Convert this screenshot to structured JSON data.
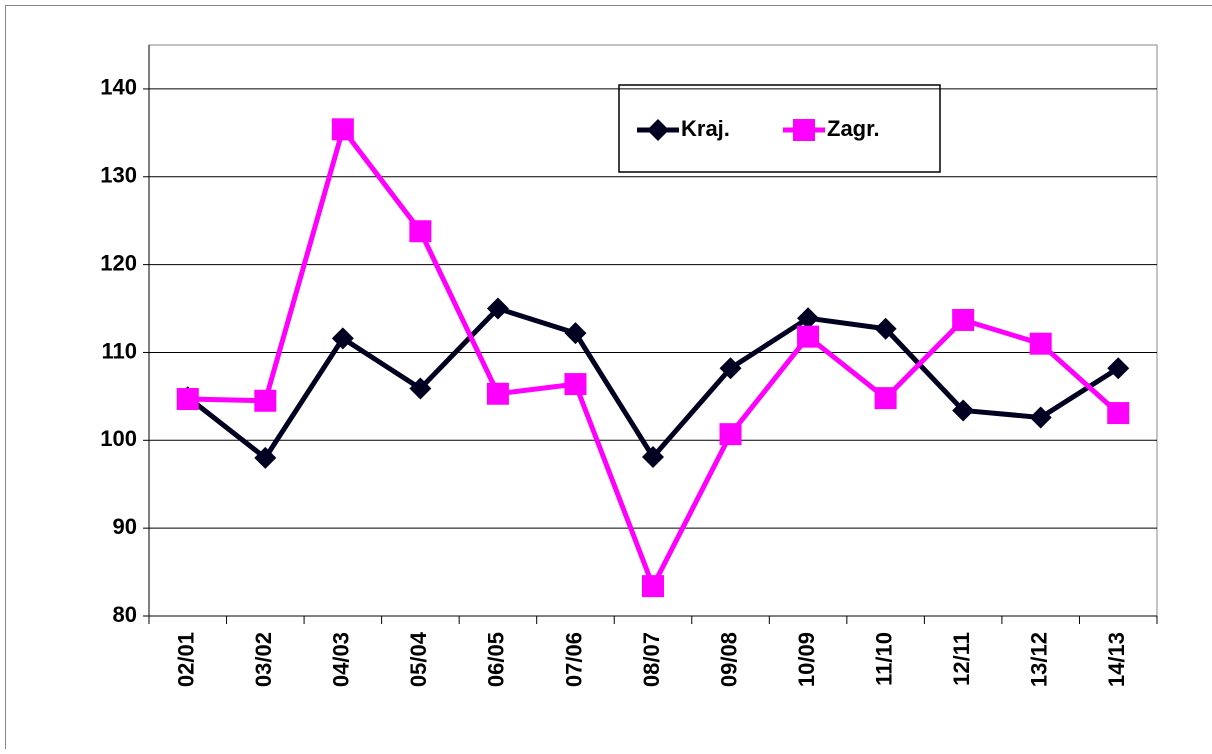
{
  "chart_data": {
    "type": "line",
    "categories": [
      "02/01",
      "03/02",
      "04/03",
      "05/04",
      "06/05",
      "07/06",
      "08/07",
      "09/08",
      "10/09",
      "11/10",
      "12/11",
      "13/12",
      "14/13"
    ],
    "series": [
      {
        "name": "Kraj.",
        "color": "#000020",
        "marker": "diamond",
        "values": [
          104.9,
          98.0,
          111.6,
          105.9,
          115.0,
          112.2,
          98.1,
          108.2,
          113.9,
          112.7,
          103.4,
          102.6,
          108.2
        ]
      },
      {
        "name": "Zagr.",
        "color": "#ff00ff",
        "marker": "square",
        "values": [
          104.7,
          104.5,
          135.4,
          123.8,
          105.3,
          106.4,
          83.4,
          100.7,
          111.8,
          104.8,
          113.7,
          111.0,
          103.1
        ]
      }
    ],
    "ylim": [
      80,
      145
    ],
    "yticks": [
      80,
      90,
      100,
      110,
      120,
      130,
      140
    ],
    "grid": true,
    "legend": "top"
  }
}
